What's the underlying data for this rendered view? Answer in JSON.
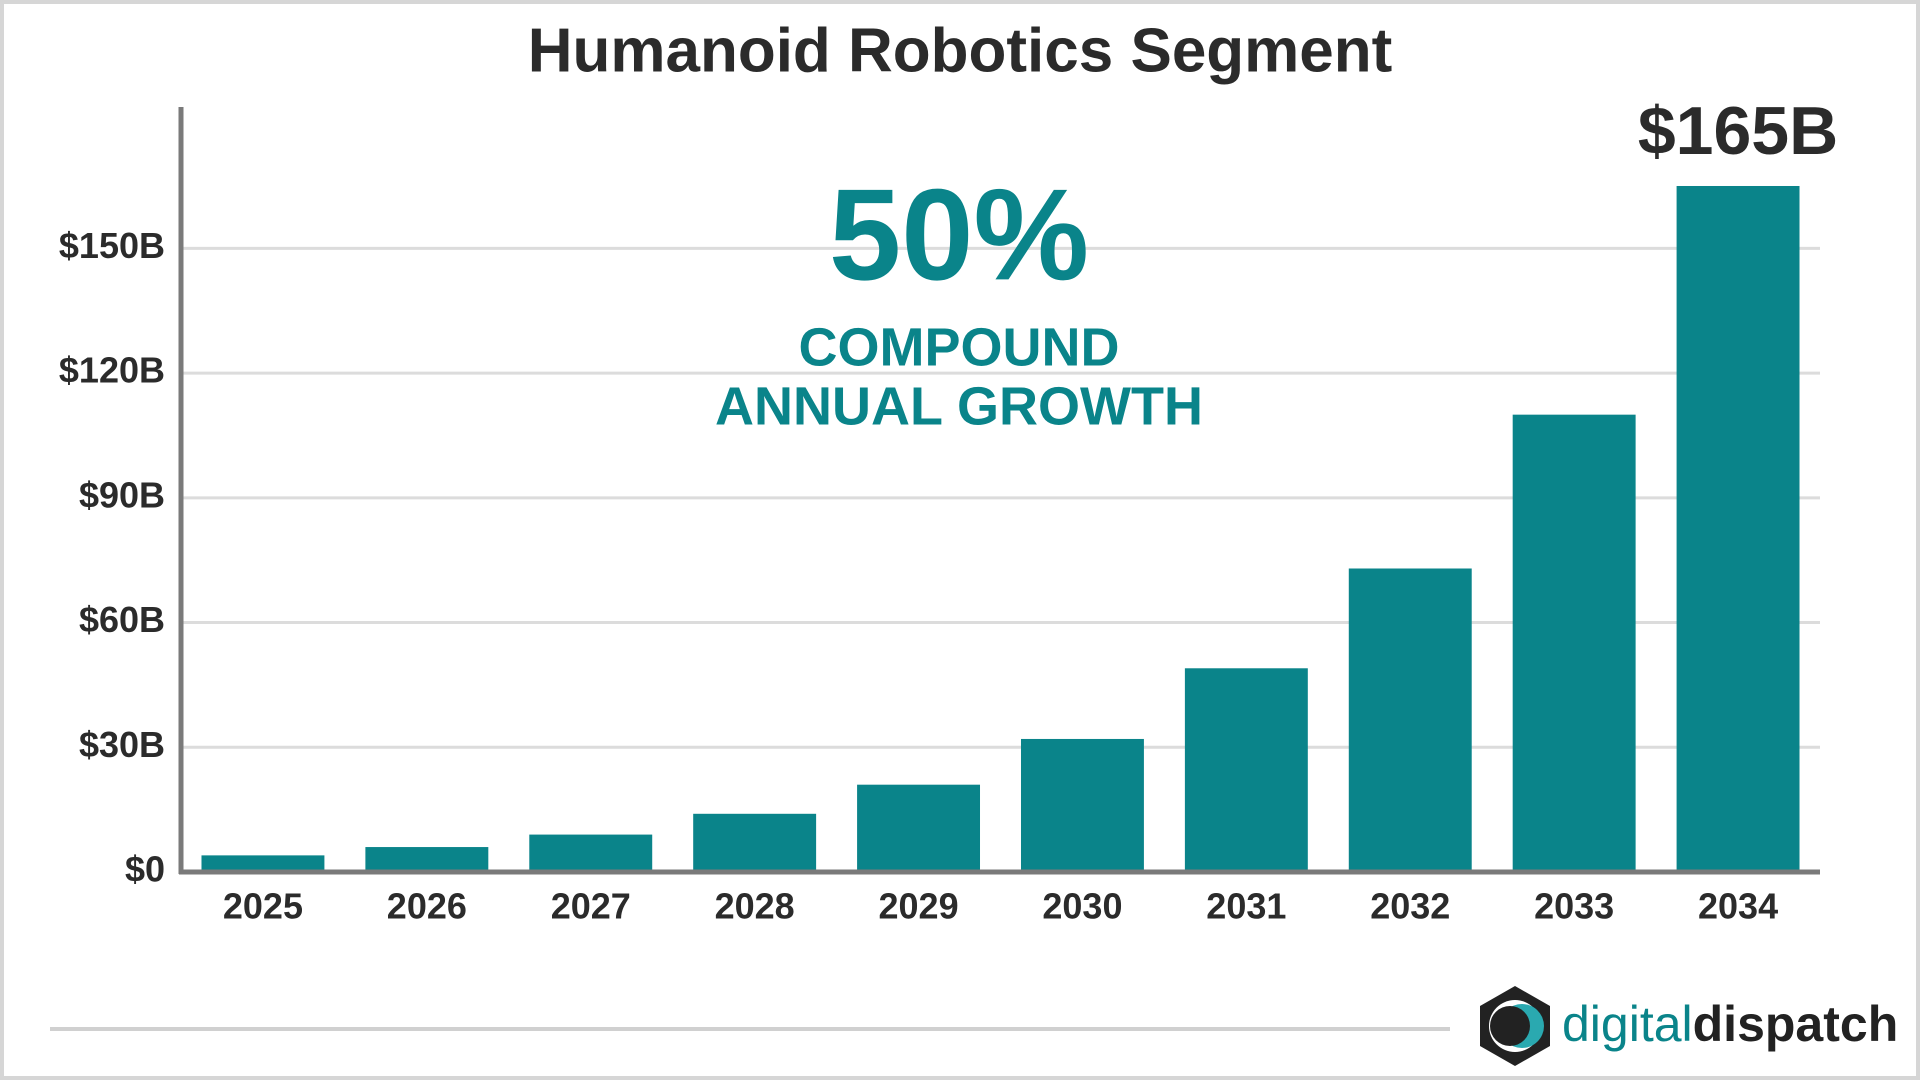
{
  "chart_data": {
    "type": "bar",
    "title": "Humanoid Robotics Segment",
    "categories": [
      "2025",
      "2026",
      "2027",
      "2028",
      "2029",
      "2030",
      "2031",
      "2032",
      "2033",
      "2034"
    ],
    "values": [
      4,
      6,
      9,
      14,
      21,
      32,
      49,
      73,
      110,
      165
    ],
    "value_labels": [
      null,
      null,
      null,
      null,
      null,
      null,
      null,
      null,
      null,
      "$165B"
    ],
    "color": "#0a848a",
    "ylim": [
      0,
      184
    ],
    "yticks": [
      {
        "value": 0,
        "label": "$0"
      },
      {
        "value": 30,
        "label": "$30B"
      },
      {
        "value": 60,
        "label": "$60B"
      },
      {
        "value": 90,
        "label": "$90B"
      },
      {
        "value": 120,
        "label": "$120B"
      },
      {
        "value": 150,
        "label": "$150B"
      }
    ],
    "grid": true,
    "annotations": [
      "50%",
      "COMPOUND",
      "ANNUAL GROWTH"
    ]
  },
  "logo": {
    "part1": "digital",
    "part2": "dispatch"
  }
}
